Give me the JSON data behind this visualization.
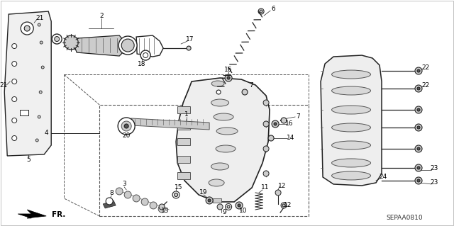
{
  "bg_color": "#ffffff",
  "diagram_code": "SEPAA0810",
  "direction_label": "FR.",
  "line_color": "#222222",
  "gray_light": "#cccccc",
  "gray_mid": "#999999",
  "gray_dark": "#555555"
}
